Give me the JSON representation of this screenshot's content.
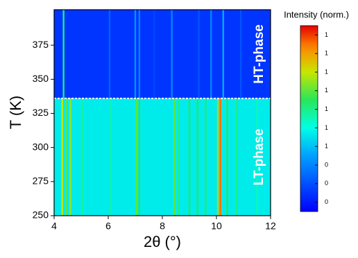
{
  "chart_data": {
    "type": "heatmap",
    "xlabel": "2θ (°)",
    "ylabel": "T (K)",
    "xlim": [
      4,
      12
    ],
    "ylim": [
      250,
      401
    ],
    "xticks": [
      4,
      6,
      8,
      10,
      12
    ],
    "yticks": [
      250,
      275,
      300,
      325,
      350,
      375
    ],
    "colorbar_title": "Intensity (norm.)",
    "clim": [
      0.2,
      1.2
    ],
    "colorbar_ticks": [
      {
        "value": 1.15,
        "label": "1"
      },
      {
        "value": 1.05,
        "label": "1"
      },
      {
        "value": 0.95,
        "label": "1"
      },
      {
        "value": 0.85,
        "label": "1"
      },
      {
        "value": 0.75,
        "label": "1"
      },
      {
        "value": 0.65,
        "label": "1"
      },
      {
        "value": 0.55,
        "label": "1"
      },
      {
        "value": 0.45,
        "label": "0"
      },
      {
        "value": 0.35,
        "label": "0"
      },
      {
        "value": 0.25,
        "label": "0"
      }
    ],
    "transition_T": 336,
    "phases": [
      {
        "name": "HT-phase",
        "T_range": [
          336,
          401
        ],
        "background": 0.3,
        "peak_x": [
          4.35,
          6.05,
          7.0,
          7.15,
          7.7,
          8.35,
          9.35,
          9.8,
          10.25,
          10.9
        ],
        "peak_intensity": [
          0.75,
          0.38,
          0.48,
          0.45,
          0.33,
          0.45,
          0.36,
          0.45,
          0.52,
          0.36
        ]
      },
      {
        "name": "LT-phase",
        "T_range": [
          250,
          336
        ],
        "background": 0.62,
        "peak_x": [
          4.3,
          4.45,
          4.6,
          5.05,
          6.1,
          7.05,
          7.15,
          8.45,
          8.6,
          9.0,
          9.3,
          9.6,
          10.05,
          10.15,
          10.4,
          10.75,
          11.5
        ],
        "peak_intensity": [
          0.95,
          0.85,
          0.9,
          0.72,
          0.72,
          0.85,
          0.8,
          0.85,
          0.75,
          0.8,
          0.8,
          0.78,
          1.0,
          1.1,
          0.8,
          0.75,
          0.7
        ]
      }
    ]
  }
}
